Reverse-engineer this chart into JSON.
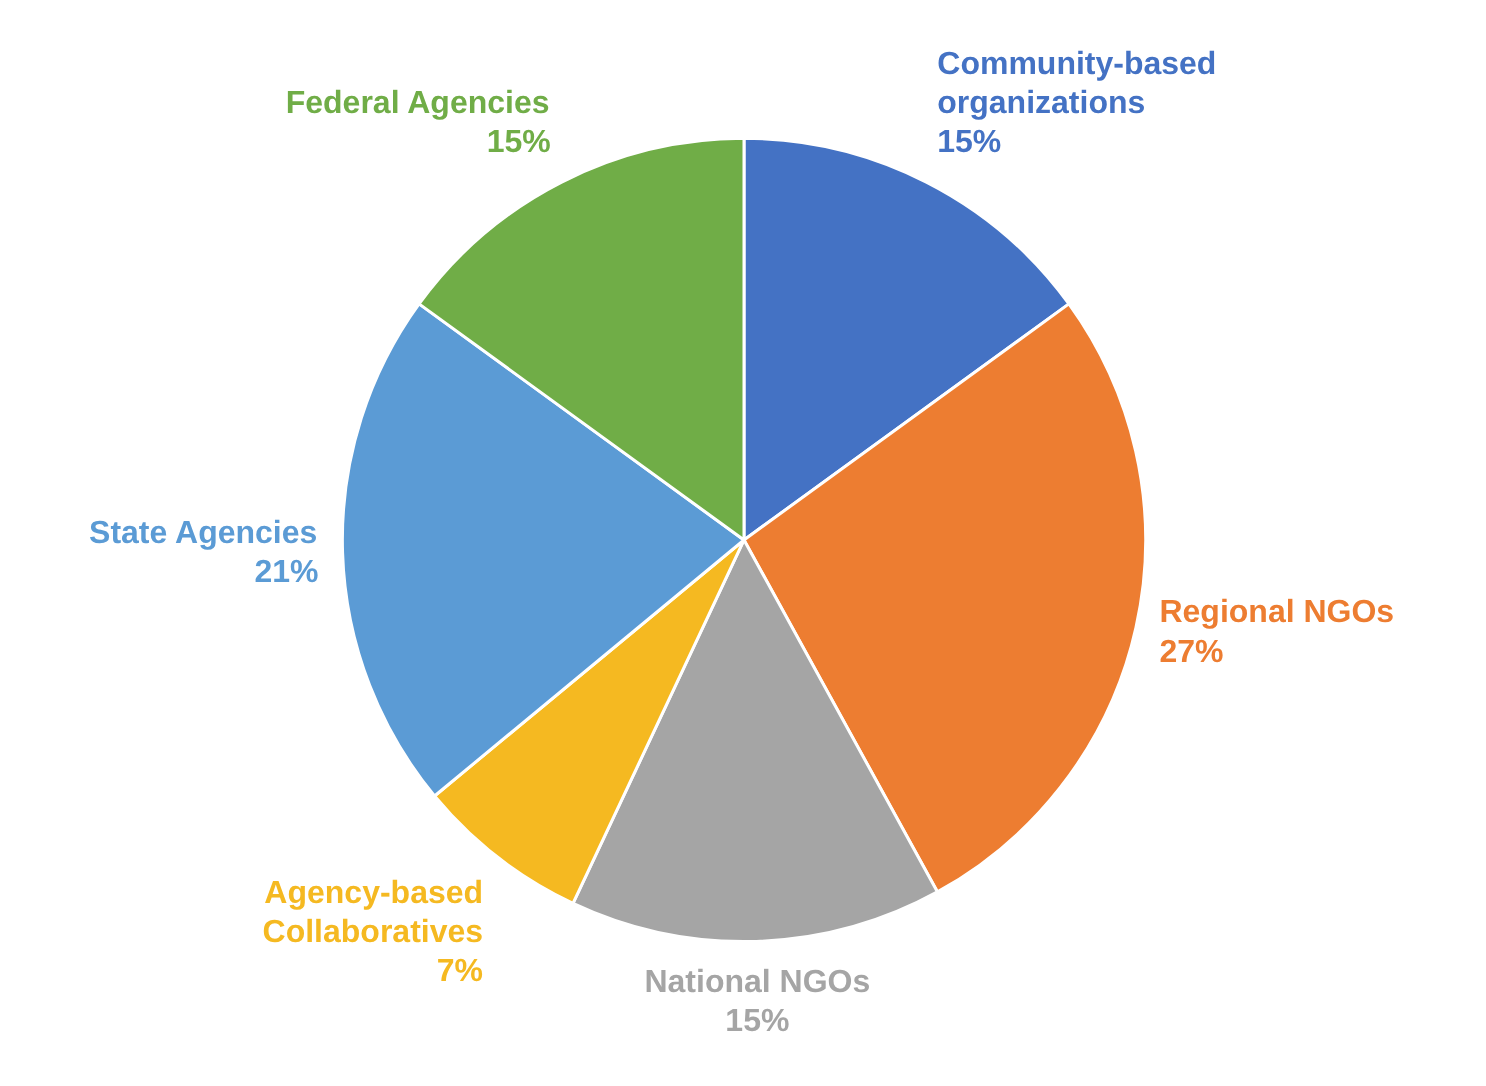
{
  "chart_data": {
    "type": "pie",
    "categories": [
      "Community-based organizations",
      "Regional NGOs",
      "National NGOs",
      "Agency-based Collaboratives",
      "State Agencies",
      "Federal Agencies"
    ],
    "values": [
      15,
      27,
      15,
      7,
      21,
      15
    ],
    "colors": [
      "#4472c4",
      "#ed7d31",
      "#a5a5a5",
      "#f5b921",
      "#5b9bd5",
      "#70ad47"
    ],
    "value_labels": [
      "15%",
      "27%",
      "15%",
      "7%",
      "21%",
      "15%"
    ]
  }
}
